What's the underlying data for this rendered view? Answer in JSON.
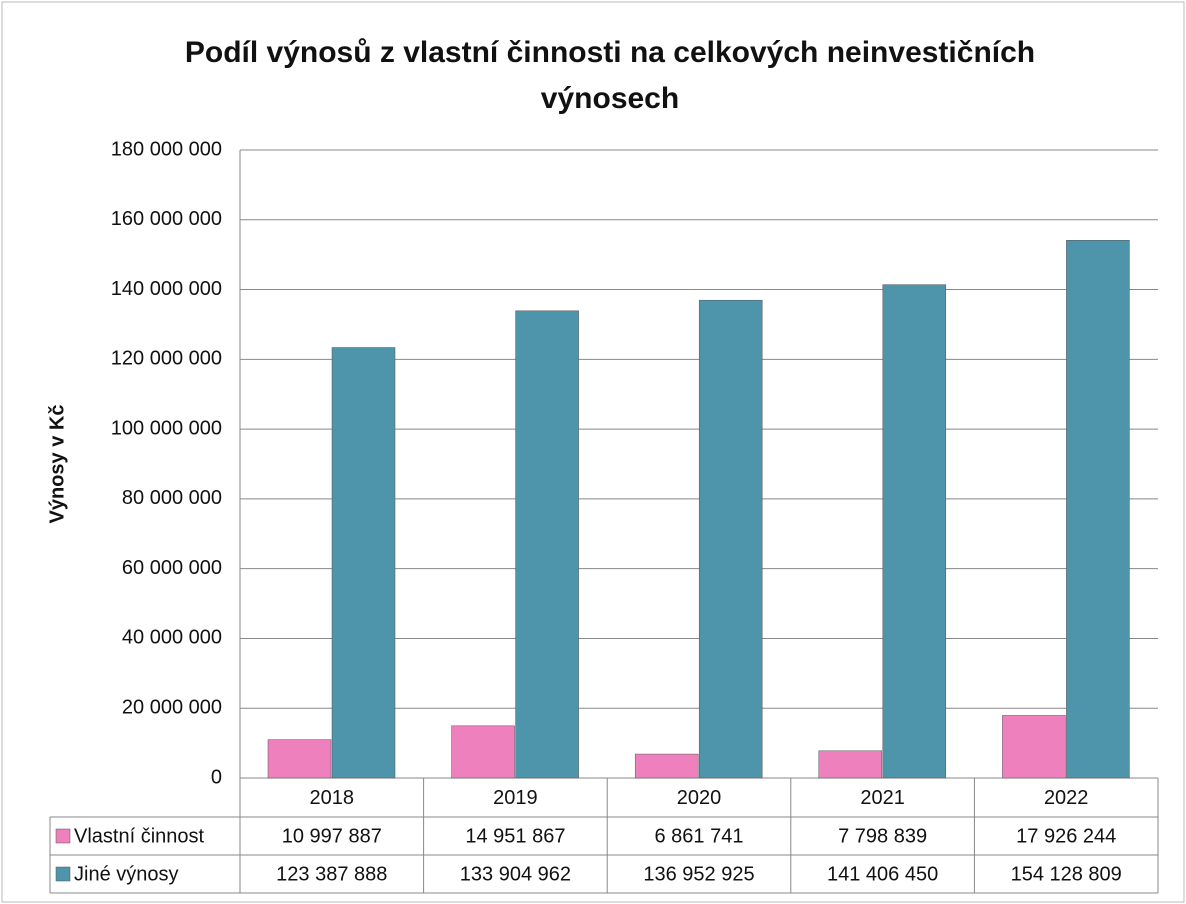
{
  "chart_data": {
    "type": "bar",
    "title": "Podíl výnosů z vlastní činnosti na celkových neinvestičních výnosech",
    "ylabel": "Výnosy v Kč",
    "categories": [
      "2018",
      "2019",
      "2020",
      "2021",
      "2022"
    ],
    "series": [
      {
        "name": "Vlastní činnost",
        "color": "#ee80bd",
        "values": [
          10997887,
          14951867,
          6861741,
          7798839,
          17926244
        ],
        "value_labels": [
          "10 997 887",
          "14 951 867",
          "6 861 741",
          "7 798 839",
          "17 926 244"
        ]
      },
      {
        "name": "Jiné výnosy",
        "color": "#4e94aa",
        "values": [
          123387888,
          133904962,
          136952925,
          141406450,
          154128809
        ],
        "value_labels": [
          "123 387 888",
          "133 904 962",
          "136 952 925",
          "141 406 450",
          "154 128 809"
        ]
      }
    ],
    "ylim": [
      0,
      180000000
    ],
    "yticks": [
      0,
      {
        "value": 20000000,
        "label": "20 000 000"
      },
      {
        "value": 40000000,
        "label": "40 000 000"
      },
      {
        "value": 60000000,
        "label": "60 000 000"
      },
      {
        "value": 80000000,
        "label": "80 000 000"
      },
      {
        "value": 100000000,
        "label": "100 000 000"
      },
      {
        "value": 120000000,
        "label": "120 000 000"
      },
      {
        "value": 140000000,
        "label": "140 000 000"
      },
      {
        "value": 160000000,
        "label": "160 000 000"
      },
      {
        "value": 180000000,
        "label": "180 000 000"
      }
    ],
    "grid": true,
    "legend": "table"
  }
}
